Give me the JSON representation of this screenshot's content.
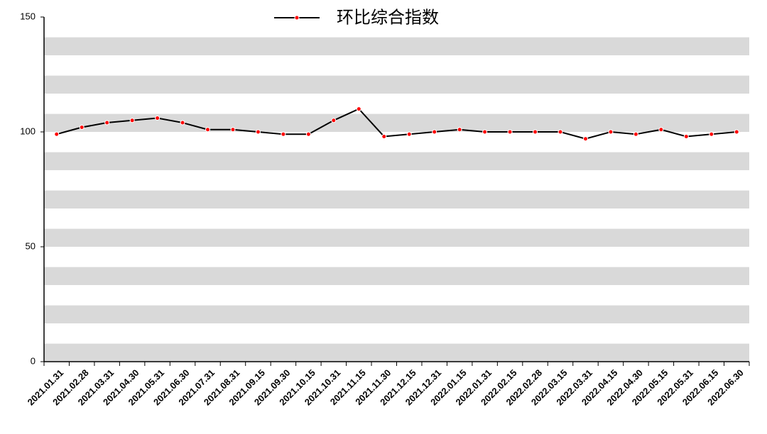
{
  "chart_data": {
    "type": "line",
    "legend": "top",
    "categories": [
      "2021.01.31",
      "2021.02.28",
      "2021.03.31",
      "2021.04.30",
      "2021.05.31",
      "2021.06.30",
      "2021.07.31",
      "2021.08.31",
      "2021.09.15",
      "2021.09.30",
      "2021.10.15",
      "2021.10.31",
      "2021.11.15",
      "2021.11.30",
      "2021.12.15",
      "2021.12.31",
      "2022.01.15",
      "2022.01.31",
      "2022.02.15",
      "2022.02.28",
      "2022.03.15",
      "2022.03.31",
      "2022.04.15",
      "2022.04.30",
      "2022.05.15",
      "2022.05.31",
      "2022.06.15",
      "2022.06.30"
    ],
    "series": [
      {
        "name": "环比综合指数",
        "color": "#000000",
        "marker_color": "#ff0000",
        "values": [
          99,
          102,
          104,
          105,
          106,
          104,
          101,
          101,
          100,
          99,
          99,
          105,
          110,
          98,
          99,
          100,
          101,
          100,
          100,
          100,
          100,
          97,
          100,
          99,
          101,
          98,
          99,
          100
        ]
      }
    ],
    "ylim": [
      0,
      150
    ],
    "yticks": [
      0,
      50,
      100,
      150
    ],
    "grid": "bands"
  }
}
